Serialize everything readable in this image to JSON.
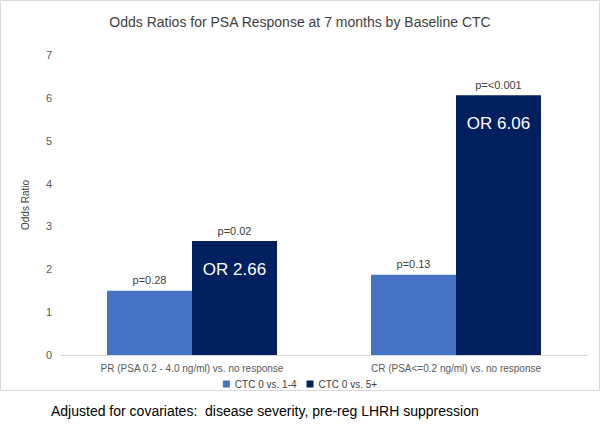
{
  "chart_data": {
    "type": "bar",
    "title": "Odds Ratios for PSA Response at 7 months by Baseline CTC",
    "y_label": "Odds Ratio",
    "caption": "Adjusted for covariates:  disease severity, pre-reg LHRH suppression",
    "categories": [
      "PR (PSA 0.2 - 4.0 ng/ml) vs. no response",
      "CR (PSA<=0.2 ng/ml) vs. no response"
    ],
    "series": [
      {
        "name": "CTC 0 vs. 1-4",
        "color": "#4472c4",
        "values": [
          1.5,
          1.87
        ],
        "annotations": [
          "p=0.28",
          "p=0.13"
        ]
      },
      {
        "name": "CTC 0 vs. 5+",
        "color": "#002060",
        "values": [
          2.66,
          6.06
        ],
        "value_labels": [
          "OR 2.66",
          "OR 6.06"
        ],
        "annotations": [
          "p=0.02",
          "p=<0.001"
        ]
      }
    ],
    "ylim": [
      0,
      7
    ],
    "yticks": [
      0,
      1,
      2,
      3,
      4,
      5,
      6,
      7
    ],
    "grid": false,
    "legend": "bottom"
  }
}
